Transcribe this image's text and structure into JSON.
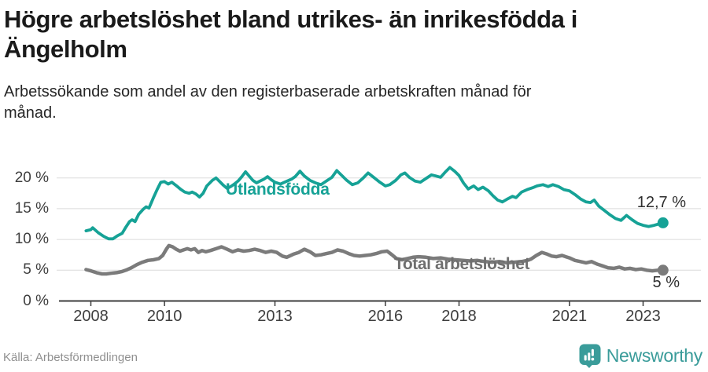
{
  "header": {
    "title": "Högre arbetslöshet bland utrikes- än inrikesfödda i Ängelholm",
    "subtitle": "Arbetssökande som andel av den registerbaserade arbetskraften månad för månad."
  },
  "chart_data": {
    "type": "line",
    "title": "Högre arbetslöshet bland utrikes- än inrikesfödda i Ängelholm",
    "subtitle": "Arbetssökande som andel av den registerbaserade arbetskraften månad för månad.",
    "xlabel": "",
    "ylabel": "",
    "unit": "%",
    "xlim": [
      2007.6,
      2023.95
    ],
    "ylim": [
      0,
      22.5
    ],
    "grid": "horizontal",
    "legend_position": "inline-labels",
    "x_ticks": {
      "years": [
        2008,
        2010,
        2013,
        2016,
        2018,
        2021,
        2023
      ],
      "labels": [
        "2008",
        "2010",
        "2013",
        "2016",
        "2018",
        "2021",
        "2023"
      ]
    },
    "y_ticks": {
      "values": [
        0,
        5,
        10,
        15,
        20
      ],
      "labels": [
        "0 %",
        "5 %",
        "10 %",
        "15 %",
        "20 %"
      ]
    },
    "series": [
      {
        "name": "Utlandsfödda",
        "color": "#16a296",
        "width": 3.8,
        "end_label": "12,7 %",
        "end_value": 12.7,
        "points": [
          [
            2007.87,
            11.4
          ],
          [
            2008.0,
            11.6
          ],
          [
            2008.05,
            11.9
          ],
          [
            2008.2,
            11.1
          ],
          [
            2008.35,
            10.5
          ],
          [
            2008.48,
            10.1
          ],
          [
            2008.6,
            10.1
          ],
          [
            2008.72,
            10.6
          ],
          [
            2008.85,
            11.0
          ],
          [
            2008.95,
            12.0
          ],
          [
            2009.05,
            12.9
          ],
          [
            2009.12,
            13.2
          ],
          [
            2009.2,
            12.9
          ],
          [
            2009.3,
            14.1
          ],
          [
            2009.42,
            14.9
          ],
          [
            2009.5,
            15.3
          ],
          [
            2009.58,
            15.1
          ],
          [
            2009.7,
            16.8
          ],
          [
            2009.8,
            18.1
          ],
          [
            2009.9,
            19.3
          ],
          [
            2010.0,
            19.4
          ],
          [
            2010.1,
            19.0
          ],
          [
            2010.2,
            19.3
          ],
          [
            2010.33,
            18.7
          ],
          [
            2010.45,
            18.1
          ],
          [
            2010.55,
            17.7
          ],
          [
            2010.67,
            17.5
          ],
          [
            2010.75,
            17.7
          ],
          [
            2010.85,
            17.4
          ],
          [
            2010.95,
            16.9
          ],
          [
            2011.05,
            17.5
          ],
          [
            2011.15,
            18.7
          ],
          [
            2011.3,
            19.6
          ],
          [
            2011.4,
            20.0
          ],
          [
            2011.5,
            19.4
          ],
          [
            2011.6,
            18.8
          ],
          [
            2011.7,
            18.3
          ],
          [
            2011.8,
            18.6
          ],
          [
            2011.9,
            19.0
          ],
          [
            2012.0,
            19.5
          ],
          [
            2012.1,
            20.2
          ],
          [
            2012.2,
            21.0
          ],
          [
            2012.3,
            20.3
          ],
          [
            2012.4,
            19.6
          ],
          [
            2012.5,
            19.2
          ],
          [
            2012.6,
            19.5
          ],
          [
            2012.7,
            19.8
          ],
          [
            2012.8,
            20.2
          ],
          [
            2012.9,
            19.7
          ],
          [
            2013.0,
            19.3
          ],
          [
            2013.15,
            19.0
          ],
          [
            2013.3,
            19.4
          ],
          [
            2013.45,
            19.8
          ],
          [
            2013.55,
            20.2
          ],
          [
            2013.68,
            21.1
          ],
          [
            2013.8,
            20.3
          ],
          [
            2013.95,
            19.6
          ],
          [
            2014.1,
            19.2
          ],
          [
            2014.25,
            18.9
          ],
          [
            2014.4,
            19.5
          ],
          [
            2014.55,
            20.1
          ],
          [
            2014.68,
            21.2
          ],
          [
            2014.8,
            20.5
          ],
          [
            2014.95,
            19.6
          ],
          [
            2015.1,
            18.9
          ],
          [
            2015.25,
            19.2
          ],
          [
            2015.4,
            20.0
          ],
          [
            2015.53,
            20.8
          ],
          [
            2015.68,
            20.1
          ],
          [
            2015.85,
            19.3
          ],
          [
            2016.0,
            18.7
          ],
          [
            2016.12,
            18.9
          ],
          [
            2016.28,
            19.6
          ],
          [
            2016.42,
            20.5
          ],
          [
            2016.53,
            20.8
          ],
          [
            2016.65,
            20.1
          ],
          [
            2016.8,
            19.5
          ],
          [
            2016.95,
            19.3
          ],
          [
            2017.1,
            19.9
          ],
          [
            2017.25,
            20.5
          ],
          [
            2017.38,
            20.3
          ],
          [
            2017.5,
            20.1
          ],
          [
            2017.62,
            20.9
          ],
          [
            2017.75,
            21.7
          ],
          [
            2017.88,
            21.1
          ],
          [
            2018.0,
            20.4
          ],
          [
            2018.12,
            19.2
          ],
          [
            2018.25,
            18.2
          ],
          [
            2018.4,
            18.7
          ],
          [
            2018.52,
            18.1
          ],
          [
            2018.65,
            18.5
          ],
          [
            2018.8,
            17.9
          ],
          [
            2018.92,
            17.1
          ],
          [
            2019.05,
            16.4
          ],
          [
            2019.18,
            16.1
          ],
          [
            2019.32,
            16.6
          ],
          [
            2019.45,
            17.0
          ],
          [
            2019.55,
            16.8
          ],
          [
            2019.7,
            17.7
          ],
          [
            2019.85,
            18.1
          ],
          [
            2020.0,
            18.4
          ],
          [
            2020.12,
            18.7
          ],
          [
            2020.28,
            18.9
          ],
          [
            2020.42,
            18.6
          ],
          [
            2020.55,
            18.9
          ],
          [
            2020.7,
            18.6
          ],
          [
            2020.85,
            18.1
          ],
          [
            2021.0,
            17.9
          ],
          [
            2021.15,
            17.3
          ],
          [
            2021.3,
            16.6
          ],
          [
            2021.45,
            16.1
          ],
          [
            2021.57,
            16.0
          ],
          [
            2021.67,
            16.4
          ],
          [
            2021.8,
            15.4
          ],
          [
            2021.95,
            14.7
          ],
          [
            2022.1,
            14.0
          ],
          [
            2022.25,
            13.4
          ],
          [
            2022.4,
            13.1
          ],
          [
            2022.55,
            13.9
          ],
          [
            2022.7,
            13.2
          ],
          [
            2022.85,
            12.6
          ],
          [
            2023.0,
            12.3
          ],
          [
            2023.15,
            12.1
          ],
          [
            2023.3,
            12.3
          ],
          [
            2023.42,
            12.5
          ],
          [
            2023.54,
            12.7
          ]
        ]
      },
      {
        "name": "Total arbetslöshet",
        "color": "#7b7b7b",
        "width": 4.5,
        "end_label": "5 %",
        "end_value": 5.0,
        "points": [
          [
            2007.87,
            5.1
          ],
          [
            2008.0,
            4.9
          ],
          [
            2008.15,
            4.6
          ],
          [
            2008.3,
            4.4
          ],
          [
            2008.42,
            4.4
          ],
          [
            2008.55,
            4.5
          ],
          [
            2008.7,
            4.6
          ],
          [
            2008.85,
            4.8
          ],
          [
            2008.95,
            5.0
          ],
          [
            2009.1,
            5.4
          ],
          [
            2009.25,
            5.9
          ],
          [
            2009.4,
            6.3
          ],
          [
            2009.55,
            6.6
          ],
          [
            2009.7,
            6.7
          ],
          [
            2009.85,
            6.9
          ],
          [
            2009.95,
            7.4
          ],
          [
            2010.05,
            8.4
          ],
          [
            2010.12,
            9.0
          ],
          [
            2010.22,
            8.8
          ],
          [
            2010.32,
            8.4
          ],
          [
            2010.42,
            8.1
          ],
          [
            2010.52,
            8.3
          ],
          [
            2010.62,
            8.5
          ],
          [
            2010.72,
            8.3
          ],
          [
            2010.82,
            8.5
          ],
          [
            2010.92,
            7.9
          ],
          [
            2011.02,
            8.2
          ],
          [
            2011.12,
            8.0
          ],
          [
            2011.25,
            8.2
          ],
          [
            2011.4,
            8.5
          ],
          [
            2011.55,
            8.8
          ],
          [
            2011.7,
            8.4
          ],
          [
            2011.85,
            8.0
          ],
          [
            2012.0,
            8.3
          ],
          [
            2012.15,
            8.1
          ],
          [
            2012.3,
            8.2
          ],
          [
            2012.45,
            8.4
          ],
          [
            2012.6,
            8.2
          ],
          [
            2012.75,
            7.9
          ],
          [
            2012.9,
            8.1
          ],
          [
            2013.05,
            7.9
          ],
          [
            2013.2,
            7.3
          ],
          [
            2013.32,
            7.1
          ],
          [
            2013.5,
            7.6
          ],
          [
            2013.65,
            7.9
          ],
          [
            2013.8,
            8.4
          ],
          [
            2013.95,
            8.0
          ],
          [
            2014.1,
            7.4
          ],
          [
            2014.25,
            7.5
          ],
          [
            2014.4,
            7.7
          ],
          [
            2014.55,
            7.9
          ],
          [
            2014.7,
            8.3
          ],
          [
            2014.85,
            8.1
          ],
          [
            2015.0,
            7.7
          ],
          [
            2015.15,
            7.4
          ],
          [
            2015.3,
            7.3
          ],
          [
            2015.45,
            7.4
          ],
          [
            2015.6,
            7.5
          ],
          [
            2015.75,
            7.7
          ],
          [
            2015.9,
            8.0
          ],
          [
            2016.05,
            8.1
          ],
          [
            2016.18,
            7.5
          ],
          [
            2016.3,
            6.9
          ],
          [
            2016.45,
            6.7
          ],
          [
            2016.6,
            6.9
          ],
          [
            2016.75,
            7.1
          ],
          [
            2016.9,
            7.2
          ],
          [
            2017.1,
            7.1
          ],
          [
            2017.3,
            6.9
          ],
          [
            2017.5,
            7.0
          ],
          [
            2017.7,
            6.8
          ],
          [
            2017.9,
            6.7
          ],
          [
            2018.1,
            6.6
          ],
          [
            2018.3,
            6.5
          ],
          [
            2018.5,
            6.6
          ],
          [
            2018.7,
            6.4
          ],
          [
            2018.9,
            6.3
          ],
          [
            2019.1,
            6.4
          ],
          [
            2019.3,
            6.2
          ],
          [
            2019.5,
            6.3
          ],
          [
            2019.7,
            6.4
          ],
          [
            2019.85,
            6.6
          ],
          [
            2019.95,
            6.8
          ],
          [
            2020.1,
            7.4
          ],
          [
            2020.25,
            7.9
          ],
          [
            2020.4,
            7.6
          ],
          [
            2020.52,
            7.3
          ],
          [
            2020.65,
            7.2
          ],
          [
            2020.8,
            7.4
          ],
          [
            2020.9,
            7.2
          ],
          [
            2021.0,
            7.0
          ],
          [
            2021.15,
            6.6
          ],
          [
            2021.3,
            6.4
          ],
          [
            2021.45,
            6.2
          ],
          [
            2021.6,
            6.4
          ],
          [
            2021.75,
            6.0
          ],
          [
            2021.9,
            5.7
          ],
          [
            2022.05,
            5.4
          ],
          [
            2022.2,
            5.3
          ],
          [
            2022.35,
            5.5
          ],
          [
            2022.5,
            5.2
          ],
          [
            2022.65,
            5.3
          ],
          [
            2022.8,
            5.1
          ],
          [
            2022.95,
            5.2
          ],
          [
            2023.1,
            5.0
          ],
          [
            2023.25,
            4.9
          ],
          [
            2023.4,
            5.0
          ],
          [
            2023.54,
            5.0
          ]
        ]
      }
    ],
    "colors": {
      "accent_teal": "#16a296",
      "series_gray": "#7b7b7b",
      "gridline": "#dbdbdb",
      "axis": "#3d3d3d",
      "brand_teal": "#3a9c9a"
    }
  },
  "footer": {
    "source": "Källa: Arbetsförmedlingen",
    "brand": "Newsworthy"
  }
}
